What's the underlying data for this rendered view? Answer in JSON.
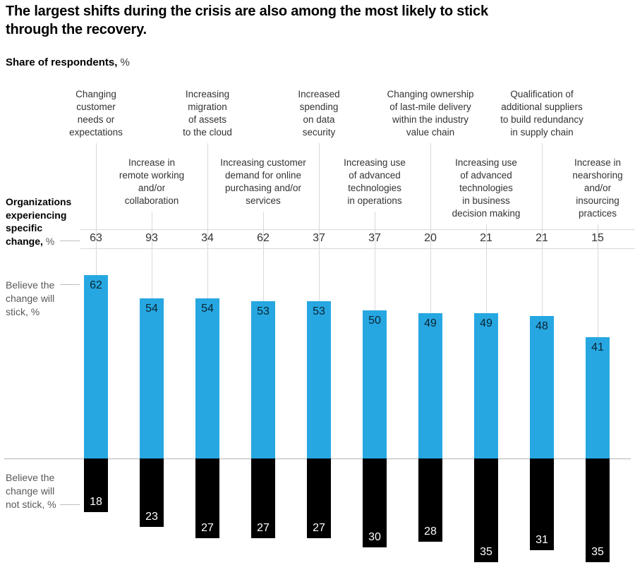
{
  "title": "The largest shifts during the crisis are also among the most likely to stick\nthrough the recovery.",
  "subtitle": {
    "bold": "Share of respondents,",
    "suffix": " %"
  },
  "row_labels": {
    "organizations": {
      "bold_lines": "Organizations\nexperiencing\nspecific\nchange,",
      "suffix": " %"
    },
    "stick": "Believe the\nchange will\nstick, %",
    "not_stick": "Believe the\nchange will\nnot stick, %"
  },
  "chart_data": {
    "type": "bar",
    "title": "The largest shifts during the crisis are also among the most likely to stick through the recovery.",
    "ylabel": "Share of respondents, %",
    "categories": [
      "Changing\ncustomer\nneeds or\nexpectations",
      "Increase in\nremote working\nand/or\ncollaboration",
      "Increasing\nmigration\nof assets\nto the cloud",
      "Increasing customer\ndemand for online\npurchasing and/or\nservices",
      "Increased\nspending\non data\nsecurity",
      "Increasing use\nof advanced\ntechnologies\nin operations",
      "Changing ownership\nof last-mile delivery\nwithin the industry\nvalue chain",
      "Increasing use\nof advanced\ntechnologies\nin business\ndecision making",
      "Qualification of\nadditional suppliers\nto build redundancy\nin supply chain",
      "Increase in\nnearshoring\nand/or\ninsourcing\npractices"
    ],
    "series": [
      {
        "name": "Organizations experiencing specific change, %",
        "values": [
          63,
          93,
          34,
          62,
          37,
          37,
          20,
          21,
          21,
          15
        ]
      },
      {
        "name": "Believe the change will stick, %",
        "values": [
          62,
          54,
          54,
          53,
          53,
          50,
          49,
          49,
          48,
          41
        ]
      },
      {
        "name": "Believe the change will not stick, %",
        "values": [
          18,
          23,
          27,
          27,
          27,
          30,
          28,
          35,
          31,
          35
        ]
      }
    ],
    "colors": {
      "stick": "#26a7e1",
      "not_stick": "#000000",
      "stick_value_text": "#0b2433",
      "not_stick_value_text": "#ffffff"
    },
    "layout": {
      "orientation": "vertical-diverging",
      "baseline_value": 0,
      "value_labels": "on-bars",
      "grid": "leader-lines",
      "legend_position": "left-annotations"
    }
  }
}
